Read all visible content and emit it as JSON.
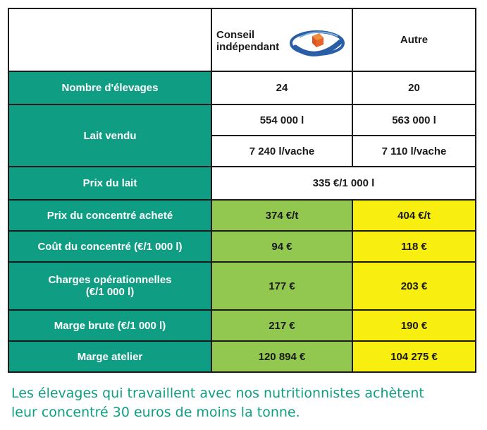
{
  "table": {
    "header": {
      "logo_line1": "Conseil",
      "logo_line2": "indépendant",
      "col_other": "Autre"
    },
    "rows": [
      {
        "label": "Nombre d'élevages",
        "conseil": "24",
        "autre": "20"
      },
      {
        "label": "Lait vendu",
        "conseil": "554 000 l",
        "autre": "563 000 l",
        "conseil2": "7 240 l/vache",
        "autre2": "7 110 l/vache"
      },
      {
        "label": "Prix du lait",
        "both": "335 €/1 000 l"
      },
      {
        "label": "Prix du concentré acheté",
        "conseil": "374 €/t",
        "autre": "404 €/t"
      },
      {
        "label": "Coût du concentré (€/1 000 l)",
        "conseil": "94 €",
        "autre": "118 €"
      },
      {
        "label_line1": "Charges opérationnelles",
        "label_line2": "(€/1 000 l)",
        "conseil": "177 €",
        "autre": "203 €"
      },
      {
        "label": "Marge brute  (€/1 000 l)",
        "conseil": "217 €",
        "autre": "190 €"
      },
      {
        "label": "Marge atelier",
        "conseil": "120 894 €",
        "autre": "104 275 €"
      }
    ]
  },
  "caption": {
    "line1": "Les élevages qui travaillent avec nos nutritionnistes achètent",
    "line2": "leur concentré 30 euros de moins la tonne."
  },
  "colors": {
    "label_bg": "#0f9e84",
    "conseil_bg": "#92c850",
    "autre_bg": "#f8ee10",
    "logo_blue": "#2a5fa8",
    "logo_orange": "#e8632a"
  },
  "icons": [
    "conseil-logo-icon"
  ]
}
